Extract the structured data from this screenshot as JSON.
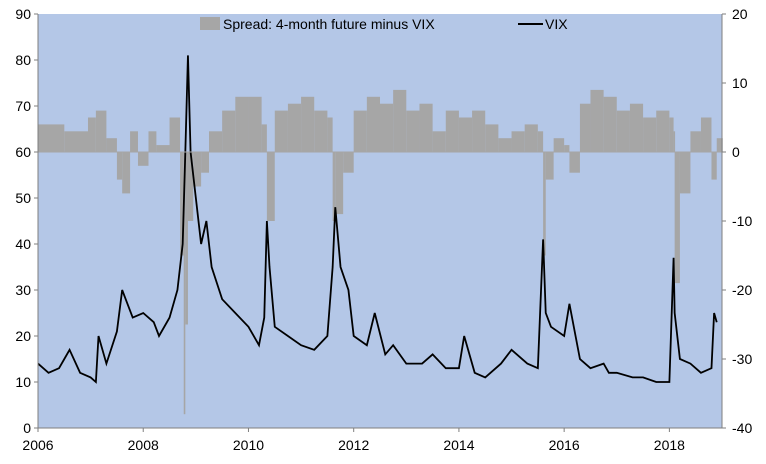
{
  "chart_data": {
    "type": "bar+line",
    "title": "",
    "xlabel": "",
    "ylabel": "",
    "x_range": [
      2006,
      2019
    ],
    "x_ticks": [
      "2006",
      "2008",
      "2010",
      "2012",
      "2014",
      "2016",
      "2018"
    ],
    "left_axis": {
      "range": [
        0,
        90
      ],
      "ticks": [
        "0",
        "10",
        "20",
        "30",
        "40",
        "50",
        "60",
        "70",
        "80",
        "90"
      ]
    },
    "right_axis": {
      "range": [
        -40,
        20
      ],
      "ticks": [
        "-40",
        "-30",
        "-20",
        "-10",
        "0",
        "10",
        "20"
      ]
    },
    "legend": {
      "placement": "top-center",
      "entries": [
        "Spread: 4-month future minus VIX",
        "VIX"
      ]
    },
    "colors": {
      "plot_background": "#b4c7e7",
      "spread_bars": "#a6a6a6",
      "vix_line": "#000000",
      "axis": "#7f7f7f"
    },
    "series": [
      {
        "name": "Spread: 4-month future minus VIX",
        "axis": "right",
        "type": "bar",
        "x": [
          2006.0,
          2006.5,
          2006.95,
          2007.1,
          2007.3,
          2007.5,
          2007.6,
          2007.75,
          2007.9,
          2008.1,
          2008.25,
          2008.5,
          2008.7,
          2008.77,
          2008.8,
          2008.85,
          2008.95,
          2009.1,
          2009.25,
          2009.5,
          2009.75,
          2010.0,
          2010.25,
          2010.35,
          2010.5,
          2010.75,
          2011.0,
          2011.25,
          2011.5,
          2011.6,
          2011.65,
          2011.8,
          2012.0,
          2012.25,
          2012.5,
          2012.75,
          2013.0,
          2013.25,
          2013.5,
          2013.75,
          2014.0,
          2014.25,
          2014.5,
          2014.75,
          2015.0,
          2015.25,
          2015.5,
          2015.6,
          2015.65,
          2015.8,
          2016.0,
          2016.1,
          2016.3,
          2016.5,
          2016.75,
          2017.0,
          2017.25,
          2017.5,
          2017.75,
          2018.0,
          2018.08,
          2018.1,
          2018.2,
          2018.4,
          2018.6,
          2018.8,
          2018.9
        ],
        "y": [
          4,
          3,
          5,
          6,
          2,
          -4,
          -6,
          3,
          -2,
          3,
          1,
          5,
          -15,
          -38,
          -25,
          -10,
          -5,
          -3,
          3,
          6,
          8,
          8,
          4,
          -10,
          6,
          7,
          8,
          6,
          5,
          -10,
          -9,
          -3,
          6,
          8,
          7,
          9,
          6,
          7,
          3,
          6,
          5,
          6,
          4,
          2,
          3,
          4,
          3,
          -15,
          -4,
          2,
          1,
          -3,
          7,
          9,
          8,
          6,
          7,
          5,
          6,
          5,
          3,
          -19,
          -6,
          3,
          5,
          -4,
          2
        ]
      },
      {
        "name": "VIX",
        "axis": "left",
        "type": "line",
        "x": [
          2006.0,
          2006.2,
          2006.4,
          2006.5,
          2006.6,
          2006.8,
          2007.0,
          2007.1,
          2007.15,
          2007.3,
          2007.5,
          2007.6,
          2007.8,
          2008.0,
          2008.2,
          2008.3,
          2008.5,
          2008.65,
          2008.75,
          2008.8,
          2008.85,
          2008.9,
          2009.0,
          2009.1,
          2009.2,
          2009.3,
          2009.5,
          2009.75,
          2010.0,
          2010.2,
          2010.3,
          2010.35,
          2010.4,
          2010.5,
          2010.75,
          2011.0,
          2011.25,
          2011.5,
          2011.6,
          2011.65,
          2011.75,
          2011.9,
          2012.0,
          2012.25,
          2012.4,
          2012.6,
          2012.75,
          2013.0,
          2013.3,
          2013.5,
          2013.75,
          2014.0,
          2014.1,
          2014.3,
          2014.5,
          2014.8,
          2015.0,
          2015.3,
          2015.5,
          2015.6,
          2015.65,
          2015.75,
          2016.0,
          2016.1,
          2016.3,
          2016.5,
          2016.75,
          2016.85,
          2017.0,
          2017.3,
          2017.5,
          2017.75,
          2018.0,
          2018.08,
          2018.1,
          2018.2,
          2018.4,
          2018.6,
          2018.8,
          2018.85,
          2018.9
        ],
        "y": [
          14,
          12,
          13,
          15,
          17,
          12,
          11,
          10,
          20,
          14,
          21,
          30,
          24,
          25,
          23,
          20,
          24,
          30,
          40,
          60,
          81,
          60,
          50,
          40,
          45,
          35,
          28,
          25,
          22,
          18,
          24,
          45,
          35,
          22,
          20,
          18,
          17,
          20,
          35,
          48,
          35,
          30,
          20,
          18,
          25,
          16,
          18,
          14,
          14,
          16,
          13,
          13,
          20,
          12,
          11,
          14,
          17,
          14,
          13,
          41,
          25,
          22,
          20,
          27,
          15,
          13,
          14,
          12,
          12,
          11,
          11,
          10,
          10,
          37,
          25,
          15,
          14,
          12,
          13,
          25,
          23
        ]
      }
    ]
  }
}
